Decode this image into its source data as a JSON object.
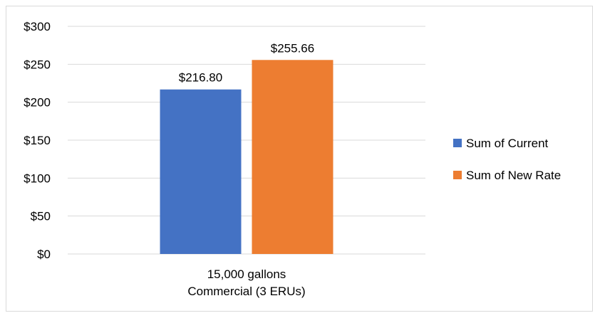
{
  "chart_data": {
    "type": "bar",
    "title": "",
    "xlabel": "",
    "ylabel": "",
    "categories": [
      "15,000 gallons\nCommercial (3 ERUs)"
    ],
    "series": [
      {
        "name": "Sum of Current",
        "values": [
          216.8
        ],
        "color": "#4472C4",
        "label": "$216.80"
      },
      {
        "name": "Sum of New Rate",
        "values": [
          255.66
        ],
        "color": "#ED7D31",
        "label": "$255.66"
      }
    ],
    "ylim": [
      0,
      300
    ],
    "yticks": [
      0,
      50,
      100,
      150,
      200,
      250,
      300
    ],
    "ytick_labels": [
      "$0",
      "$50",
      "$100",
      "$150",
      "$200",
      "$250",
      "$300"
    ],
    "x_tick_lines": [
      "15,000 gallons",
      "Commercial (3 ERUs)"
    ],
    "grid": true,
    "legend_position": "right"
  },
  "colors": {
    "grid": "#d9d9d9",
    "text": "#000000"
  }
}
